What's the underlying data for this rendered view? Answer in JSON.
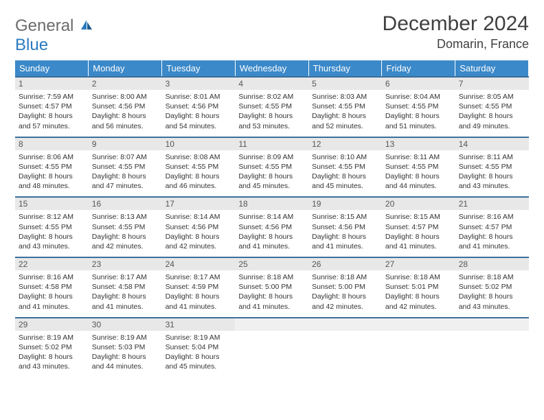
{
  "logo": {
    "line1": "General",
    "line2": "Blue"
  },
  "title": "December 2024",
  "location": "Domarin, France",
  "colors": {
    "header_bg": "#3b89c9",
    "header_text": "#ffffff",
    "row_border": "#3b6e9c",
    "daynum_bg": "#e8e8e8",
    "logo_blue": "#2a7ac0",
    "logo_gray": "#6b6b6b"
  },
  "day_headers": [
    "Sunday",
    "Monday",
    "Tuesday",
    "Wednesday",
    "Thursday",
    "Friday",
    "Saturday"
  ],
  "weeks": [
    [
      {
        "n": "1",
        "sr": "Sunrise: 7:59 AM",
        "ss": "Sunset: 4:57 PM",
        "dl": "Daylight: 8 hours and 57 minutes."
      },
      {
        "n": "2",
        "sr": "Sunrise: 8:00 AM",
        "ss": "Sunset: 4:56 PM",
        "dl": "Daylight: 8 hours and 56 minutes."
      },
      {
        "n": "3",
        "sr": "Sunrise: 8:01 AM",
        "ss": "Sunset: 4:56 PM",
        "dl": "Daylight: 8 hours and 54 minutes."
      },
      {
        "n": "4",
        "sr": "Sunrise: 8:02 AM",
        "ss": "Sunset: 4:55 PM",
        "dl": "Daylight: 8 hours and 53 minutes."
      },
      {
        "n": "5",
        "sr": "Sunrise: 8:03 AM",
        "ss": "Sunset: 4:55 PM",
        "dl": "Daylight: 8 hours and 52 minutes."
      },
      {
        "n": "6",
        "sr": "Sunrise: 8:04 AM",
        "ss": "Sunset: 4:55 PM",
        "dl": "Daylight: 8 hours and 51 minutes."
      },
      {
        "n": "7",
        "sr": "Sunrise: 8:05 AM",
        "ss": "Sunset: 4:55 PM",
        "dl": "Daylight: 8 hours and 49 minutes."
      }
    ],
    [
      {
        "n": "8",
        "sr": "Sunrise: 8:06 AM",
        "ss": "Sunset: 4:55 PM",
        "dl": "Daylight: 8 hours and 48 minutes."
      },
      {
        "n": "9",
        "sr": "Sunrise: 8:07 AM",
        "ss": "Sunset: 4:55 PM",
        "dl": "Daylight: 8 hours and 47 minutes."
      },
      {
        "n": "10",
        "sr": "Sunrise: 8:08 AM",
        "ss": "Sunset: 4:55 PM",
        "dl": "Daylight: 8 hours and 46 minutes."
      },
      {
        "n": "11",
        "sr": "Sunrise: 8:09 AM",
        "ss": "Sunset: 4:55 PM",
        "dl": "Daylight: 8 hours and 45 minutes."
      },
      {
        "n": "12",
        "sr": "Sunrise: 8:10 AM",
        "ss": "Sunset: 4:55 PM",
        "dl": "Daylight: 8 hours and 45 minutes."
      },
      {
        "n": "13",
        "sr": "Sunrise: 8:11 AM",
        "ss": "Sunset: 4:55 PM",
        "dl": "Daylight: 8 hours and 44 minutes."
      },
      {
        "n": "14",
        "sr": "Sunrise: 8:11 AM",
        "ss": "Sunset: 4:55 PM",
        "dl": "Daylight: 8 hours and 43 minutes."
      }
    ],
    [
      {
        "n": "15",
        "sr": "Sunrise: 8:12 AM",
        "ss": "Sunset: 4:55 PM",
        "dl": "Daylight: 8 hours and 43 minutes."
      },
      {
        "n": "16",
        "sr": "Sunrise: 8:13 AM",
        "ss": "Sunset: 4:55 PM",
        "dl": "Daylight: 8 hours and 42 minutes."
      },
      {
        "n": "17",
        "sr": "Sunrise: 8:14 AM",
        "ss": "Sunset: 4:56 PM",
        "dl": "Daylight: 8 hours and 42 minutes."
      },
      {
        "n": "18",
        "sr": "Sunrise: 8:14 AM",
        "ss": "Sunset: 4:56 PM",
        "dl": "Daylight: 8 hours and 41 minutes."
      },
      {
        "n": "19",
        "sr": "Sunrise: 8:15 AM",
        "ss": "Sunset: 4:56 PM",
        "dl": "Daylight: 8 hours and 41 minutes."
      },
      {
        "n": "20",
        "sr": "Sunrise: 8:15 AM",
        "ss": "Sunset: 4:57 PM",
        "dl": "Daylight: 8 hours and 41 minutes."
      },
      {
        "n": "21",
        "sr": "Sunrise: 8:16 AM",
        "ss": "Sunset: 4:57 PM",
        "dl": "Daylight: 8 hours and 41 minutes."
      }
    ],
    [
      {
        "n": "22",
        "sr": "Sunrise: 8:16 AM",
        "ss": "Sunset: 4:58 PM",
        "dl": "Daylight: 8 hours and 41 minutes."
      },
      {
        "n": "23",
        "sr": "Sunrise: 8:17 AM",
        "ss": "Sunset: 4:58 PM",
        "dl": "Daylight: 8 hours and 41 minutes."
      },
      {
        "n": "24",
        "sr": "Sunrise: 8:17 AM",
        "ss": "Sunset: 4:59 PM",
        "dl": "Daylight: 8 hours and 41 minutes."
      },
      {
        "n": "25",
        "sr": "Sunrise: 8:18 AM",
        "ss": "Sunset: 5:00 PM",
        "dl": "Daylight: 8 hours and 41 minutes."
      },
      {
        "n": "26",
        "sr": "Sunrise: 8:18 AM",
        "ss": "Sunset: 5:00 PM",
        "dl": "Daylight: 8 hours and 42 minutes."
      },
      {
        "n": "27",
        "sr": "Sunrise: 8:18 AM",
        "ss": "Sunset: 5:01 PM",
        "dl": "Daylight: 8 hours and 42 minutes."
      },
      {
        "n": "28",
        "sr": "Sunrise: 8:18 AM",
        "ss": "Sunset: 5:02 PM",
        "dl": "Daylight: 8 hours and 43 minutes."
      }
    ],
    [
      {
        "n": "29",
        "sr": "Sunrise: 8:19 AM",
        "ss": "Sunset: 5:02 PM",
        "dl": "Daylight: 8 hours and 43 minutes."
      },
      {
        "n": "30",
        "sr": "Sunrise: 8:19 AM",
        "ss": "Sunset: 5:03 PM",
        "dl": "Daylight: 8 hours and 44 minutes."
      },
      {
        "n": "31",
        "sr": "Sunrise: 8:19 AM",
        "ss": "Sunset: 5:04 PM",
        "dl": "Daylight: 8 hours and 45 minutes."
      },
      null,
      null,
      null,
      null
    ]
  ]
}
